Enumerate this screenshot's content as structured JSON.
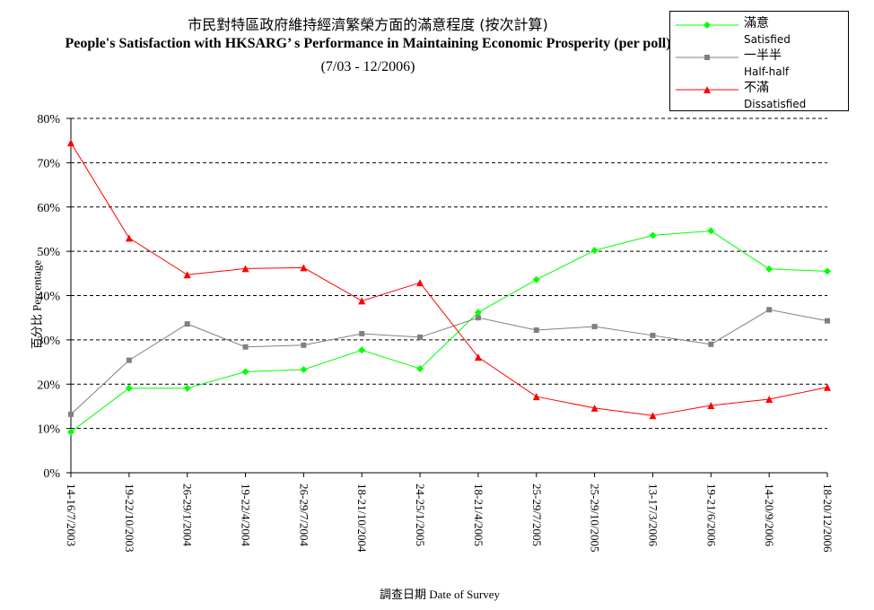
{
  "chart_data": {
    "type": "line",
    "title_cn": "市民對特區政府維持經濟繁榮方面的滿意程度 (按次計算)",
    "title_en": "People's Satisfaction with HKSARG’ s Performance in Maintaining Economic Prosperity (per poll)",
    "subtitle": "(7/03 - 12/2006)",
    "xlabel": "調查日期 Date of Survey",
    "ylabel": "百分比 Percentage",
    "ylim": [
      0,
      80
    ],
    "y_ticks": [
      "0%",
      "10%",
      "20%",
      "30%",
      "40%",
      "50%",
      "60%",
      "70%",
      "80%"
    ],
    "grid": "horizontal dashed",
    "legend_position": "top-right",
    "categories": [
      "14-16/7/2003",
      "19-22/10/2003",
      "26-29/1/2004",
      "19-22/4/2004",
      "26-29/7/2004",
      "18-21/10/2004",
      "24-25/1/2005",
      "18-21/4/2005",
      "25-29/7/2005",
      "25-29/10/2005",
      "13-17/3/2006",
      "19-21/6/2006",
      "14-20/9/2006",
      "18-20/12/2006"
    ],
    "series": [
      {
        "name": "滿意",
        "name_en": "Satisfied",
        "color": "#00ff00",
        "marker": "diamond",
        "values": [
          9.2,
          19.1,
          19.1,
          22.8,
          23.3,
          27.7,
          23.5,
          36.2,
          43.6,
          50.2,
          53.6,
          54.6,
          46.0,
          45.5
        ]
      },
      {
        "name": "一半半",
        "name_en": "Half-half",
        "color": "#808080",
        "marker": "square",
        "values": [
          13.2,
          25.4,
          33.6,
          28.4,
          28.8,
          31.4,
          30.6,
          35.0,
          32.2,
          33.0,
          31.0,
          29.0,
          36.8,
          34.3
        ]
      },
      {
        "name": "不滿",
        "name_en": "Dissatisfied",
        "color": "#ff0000",
        "marker": "triangle",
        "values": [
          74.5,
          53.0,
          44.7,
          46.1,
          46.3,
          38.8,
          42.9,
          26.1,
          17.2,
          14.6,
          12.9,
          15.2,
          16.6,
          19.3
        ]
      }
    ]
  }
}
